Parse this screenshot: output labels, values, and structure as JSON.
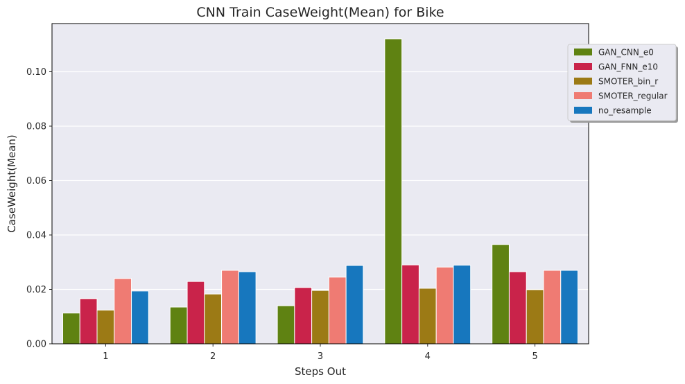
{
  "chart_data": {
    "type": "bar",
    "title": "CNN Train CaseWeight(Mean) for Bike",
    "xlabel": "Steps Out",
    "ylabel": "CaseWeight(Mean)",
    "categories": [
      "1",
      "2",
      "3",
      "4",
      "5"
    ],
    "ylim": [
      0,
      0.1177
    ],
    "yticks": [
      "0.00",
      "0.02",
      "0.04",
      "0.06",
      "0.08",
      "0.10"
    ],
    "ytick_values": [
      0,
      0.02,
      0.04,
      0.06,
      0.08,
      0.1
    ],
    "grid": true,
    "legend_position": "top-right (outside)",
    "background_color": "#eaeaf2",
    "series": [
      {
        "name": "GAN_CNN_e0",
        "color": "#5f8212",
        "values": [
          0.0113,
          0.0135,
          0.014,
          0.1121,
          0.0365
        ]
      },
      {
        "name": "GAN_FNN_e10",
        "color": "#c9234a",
        "values": [
          0.0166,
          0.0229,
          0.0207,
          0.029,
          0.0265
        ]
      },
      {
        "name": "SMOTER_bin_r",
        "color": "#9c7a15",
        "values": [
          0.0124,
          0.0183,
          0.0196,
          0.0204,
          0.0199
        ]
      },
      {
        "name": "SMOTER_regular",
        "color": "#ef7b73",
        "values": [
          0.024,
          0.027,
          0.0245,
          0.0282,
          0.027
        ]
      },
      {
        "name": "no_resample",
        "color": "#1777be",
        "values": [
          0.0194,
          0.0265,
          0.0288,
          0.0289,
          0.027
        ]
      }
    ]
  }
}
